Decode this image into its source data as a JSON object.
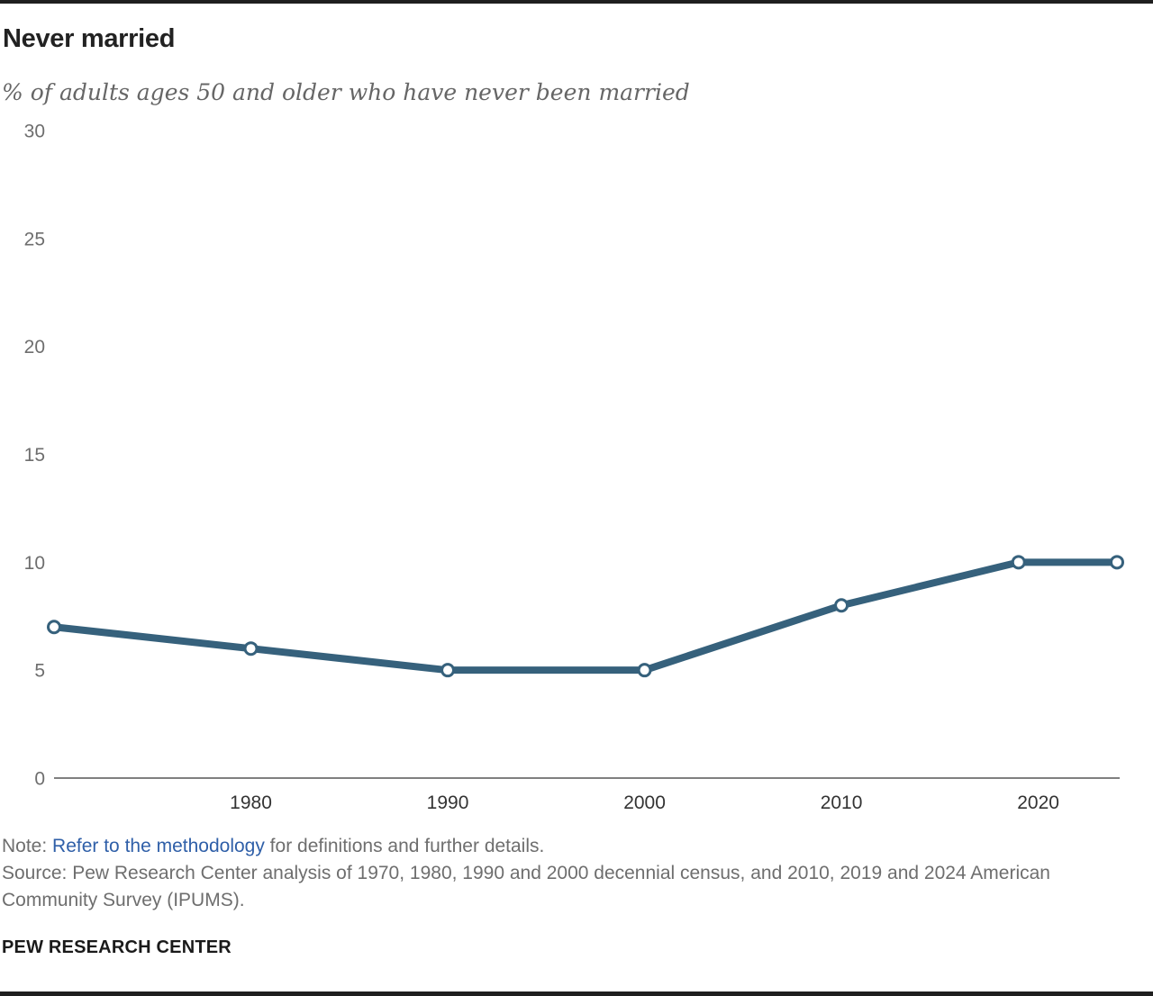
{
  "header": {
    "title": "Never married",
    "subtitle": "% of adults ages 50 and older who have never been married"
  },
  "chart_data": {
    "type": "line",
    "title": "Never married",
    "subtitle": "% of adults ages 50 and older who have never been married",
    "series": [
      {
        "name": "Never married",
        "x": [
          1970,
          1980,
          1990,
          2000,
          2010,
          2019,
          2024
        ],
        "values": [
          7,
          6,
          5,
          5,
          8,
          10,
          10
        ]
      }
    ],
    "xlim": [
      1970,
      2024
    ],
    "ylim": [
      0,
      30
    ],
    "y_ticks": [
      0,
      5,
      10,
      15,
      20,
      25,
      30
    ],
    "x_ticks": [
      1980,
      1990,
      2000,
      2010,
      2020
    ],
    "grid": false,
    "legend": "none",
    "marker": "open-circle",
    "line_color": "#36617c",
    "axis_color": "#808080"
  },
  "footer": {
    "note_prefix": "Note: ",
    "note_link": "Refer to the methodology",
    "note_suffix": " for definitions and further details.",
    "source": "Source: Pew Research Center analysis of 1970, 1980, 1990 and 2000 decennial census, and 2010, 2019 and 2024 American Community Survey (IPUMS).",
    "brand": "PEW RESEARCH CENTER"
  },
  "colors": {
    "line": "#36617c",
    "axis": "#808080",
    "y_tick_label": "#6e6e6e",
    "x_tick_label": "#333333",
    "link": "#2f5fa8",
    "body_text": "#6e6e6e",
    "title_text": "#222222",
    "rule": "#1f1f1f"
  }
}
